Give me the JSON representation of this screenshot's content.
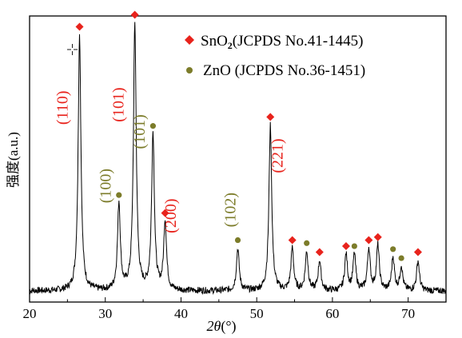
{
  "chart_data": {
    "type": "line",
    "xlabel_italic": "2θ",
    "xlabel_rest": "(°)",
    "ylabel": "强度(a.u.)",
    "xlim": [
      20,
      75
    ],
    "ylim": [
      0,
      1
    ],
    "x_ticks": [
      20,
      30,
      40,
      50,
      60,
      70
    ],
    "legend_position": "top-right",
    "legend": [
      {
        "label_main": "SnO",
        "label_sub": "2",
        "label_rest": "(JCPDS No.41-1445)",
        "marker": "diamond",
        "color": "#e8231c"
      },
      {
        "label_main": "ZnO (JCPDS No.36-1451)",
        "label_sub": "",
        "label_rest": "",
        "marker": "circle",
        "color": "#7c7c2a"
      }
    ],
    "series": [
      {
        "baseline": 0.09,
        "peaks": [
          {
            "x": 26.6,
            "y": 0.94,
            "phase": "SnO2"
          },
          {
            "x": 31.8,
            "y": 0.38,
            "phase": "ZnO"
          },
          {
            "x": 33.9,
            "y": 0.98,
            "phase": "SnO2"
          },
          {
            "x": 36.3,
            "y": 0.61,
            "phase": "ZnO"
          },
          {
            "x": 37.9,
            "y": 0.32,
            "phase": "SnO2"
          },
          {
            "x": 47.5,
            "y": 0.23,
            "phase": "ZnO"
          },
          {
            "x": 51.8,
            "y": 0.64,
            "phase": "SnO2"
          },
          {
            "x": 54.7,
            "y": 0.23,
            "phase": "SnO2"
          },
          {
            "x": 56.6,
            "y": 0.22,
            "phase": "ZnO"
          },
          {
            "x": 58.3,
            "y": 0.19,
            "phase": "SnO2"
          },
          {
            "x": 61.8,
            "y": 0.21,
            "phase": "SnO2"
          },
          {
            "x": 62.9,
            "y": 0.21,
            "phase": "ZnO"
          },
          {
            "x": 64.8,
            "y": 0.23,
            "phase": "SnO2"
          },
          {
            "x": 66.0,
            "y": 0.24,
            "phase": "SnO2"
          },
          {
            "x": 68.0,
            "y": 0.2,
            "phase": "ZnO"
          },
          {
            "x": 69.1,
            "y": 0.17,
            "phase": "ZnO"
          },
          {
            "x": 71.3,
            "y": 0.19,
            "phase": "SnO2"
          }
        ]
      }
    ],
    "annotations": [
      {
        "text": "(110)",
        "x": 25.0,
        "y": 0.7,
        "color": "#e8231c"
      },
      {
        "text": "(100)",
        "x": 30.7,
        "y": 0.44,
        "color": "#7c7c2a"
      },
      {
        "text": "(101)",
        "x": 32.4,
        "y": 0.71,
        "color": "#e8231c"
      },
      {
        "text": "(101)",
        "x": 35.2,
        "y": 0.62,
        "color": "#7c7c2a"
      },
      {
        "text": "(200)",
        "x": 39.3,
        "y": 0.34,
        "color": "#e8231c"
      },
      {
        "text": "(102)",
        "x": 47.2,
        "y": 0.36,
        "color": "#7c7c2a"
      },
      {
        "text": "(221)",
        "x": 53.4,
        "y": 0.54,
        "color": "#e8231c"
      }
    ],
    "colors": {
      "sno2": "#e8231c",
      "zno": "#7c7c2a",
      "line": "#000000"
    }
  }
}
